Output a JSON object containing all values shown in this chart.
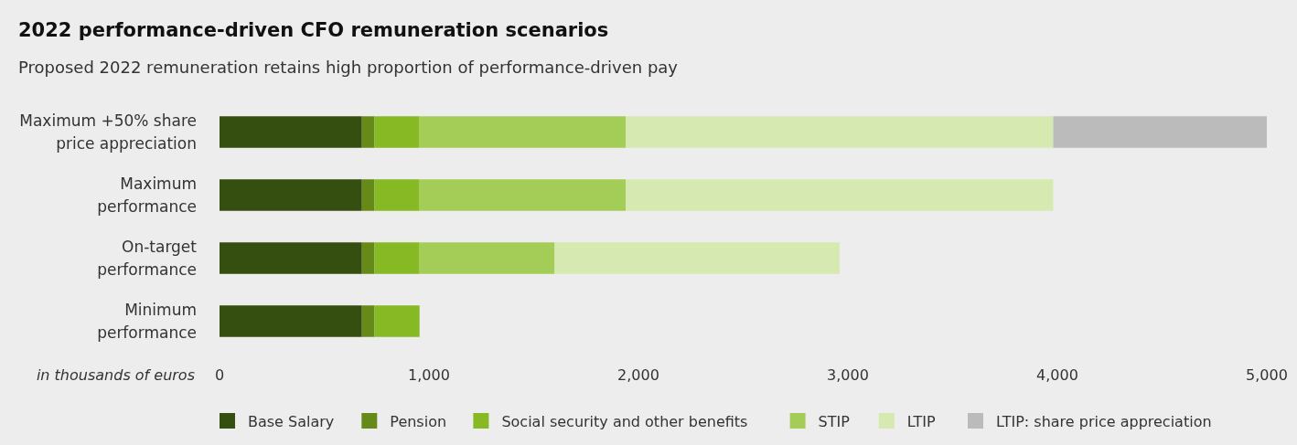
{
  "chart_data": {
    "type": "bar",
    "orientation": "horizontal",
    "stacked": true,
    "title": "2022 performance-driven CFO remuneration scenarios",
    "subtitle": "Proposed 2022 remuneration retains high proportion of performance-driven pay",
    "xlabel": "in thousands of euros",
    "categories": [
      "Maximum +50% share\nprice appreciation",
      "Maximum\nperformance",
      "On-target\nperformance",
      "Minimum\nperformance"
    ],
    "series": [
      {
        "name": "Base Salary",
        "color": "#354f10",
        "values": [
          680,
          680,
          680,
          680
        ]
      },
      {
        "name": "Pension",
        "color": "#658a18",
        "values": [
          60,
          60,
          60,
          60
        ]
      },
      {
        "name": "Social security and other benefits",
        "color": "#87b925",
        "values": [
          215,
          215,
          215,
          215
        ]
      },
      {
        "name": "STIP",
        "color": "#a4cd58",
        "values": [
          985,
          985,
          645,
          null
        ]
      },
      {
        "name": "LTIP",
        "color": "#d5e9b1",
        "values": [
          2040,
          2040,
          1360,
          null
        ]
      },
      {
        "name": "LTIP: share price appreciation",
        "color": "#bbbbbb",
        "values": [
          1020,
          null,
          null,
          null
        ]
      }
    ],
    "xlim": [
      0,
      5000
    ],
    "xticks": [
      {
        "value": 0,
        "label": "0"
      },
      {
        "value": 1000,
        "label": "1,000"
      },
      {
        "value": 2000,
        "label": "2,000"
      },
      {
        "value": 3000,
        "label": "3,000"
      },
      {
        "value": 4000,
        "label": "4,000"
      },
      {
        "value": 5000,
        "label": "5,000"
      }
    ],
    "grid": false,
    "legend": "bottom"
  }
}
